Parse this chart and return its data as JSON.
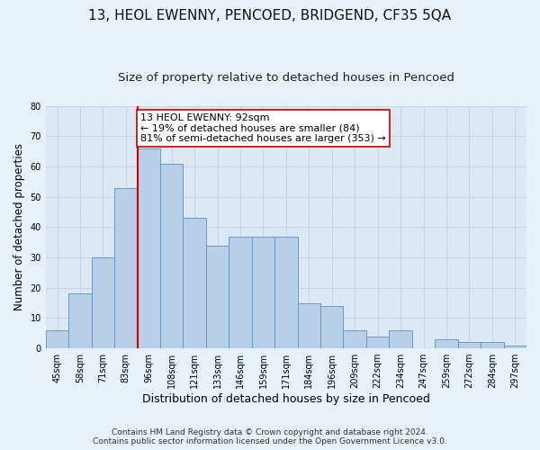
{
  "title": "13, HEOL EWENNY, PENCOED, BRIDGEND, CF35 5QA",
  "subtitle": "Size of property relative to detached houses in Pencoed",
  "xlabel": "Distribution of detached houses by size in Pencoed",
  "ylabel": "Number of detached properties",
  "bar_labels": [
    "45sqm",
    "58sqm",
    "71sqm",
    "83sqm",
    "96sqm",
    "108sqm",
    "121sqm",
    "133sqm",
    "146sqm",
    "159sqm",
    "171sqm",
    "184sqm",
    "196sqm",
    "209sqm",
    "222sqm",
    "234sqm",
    "247sqm",
    "259sqm",
    "272sqm",
    "284sqm",
    "297sqm"
  ],
  "bar_values": [
    6,
    18,
    30,
    53,
    66,
    61,
    43,
    34,
    37,
    37,
    37,
    15,
    14,
    6,
    4,
    6,
    0,
    3,
    2,
    2,
    1
  ],
  "bar_color": "#b8cfe8",
  "bar_edge_color": "#6699cc",
  "grid_color": "#c8d4e4",
  "background_color": "#dde8f5",
  "fig_background_color": "#e8f0f8",
  "vline_x_index": 4,
  "vline_color": "#cc0000",
  "annotation_line1": "13 HEOL EWENNY: 92sqm",
  "annotation_line2": "← 19% of detached houses are smaller (84)",
  "annotation_line3": "81% of semi-detached houses are larger (353) →",
  "annotation_box_color": "#ffffff",
  "annotation_box_edge": "#cc0000",
  "ylim": [
    0,
    80
  ],
  "yticks": [
    0,
    10,
    20,
    30,
    40,
    50,
    60,
    70,
    80
  ],
  "footer_line1": "Contains HM Land Registry data © Crown copyright and database right 2024.",
  "footer_line2": "Contains public sector information licensed under the Open Government Licence v3.0.",
  "title_fontsize": 11,
  "subtitle_fontsize": 9.5,
  "xlabel_fontsize": 9,
  "ylabel_fontsize": 8.5,
  "tick_fontsize": 7,
  "annotation_fontsize": 8,
  "footer_fontsize": 6.5
}
